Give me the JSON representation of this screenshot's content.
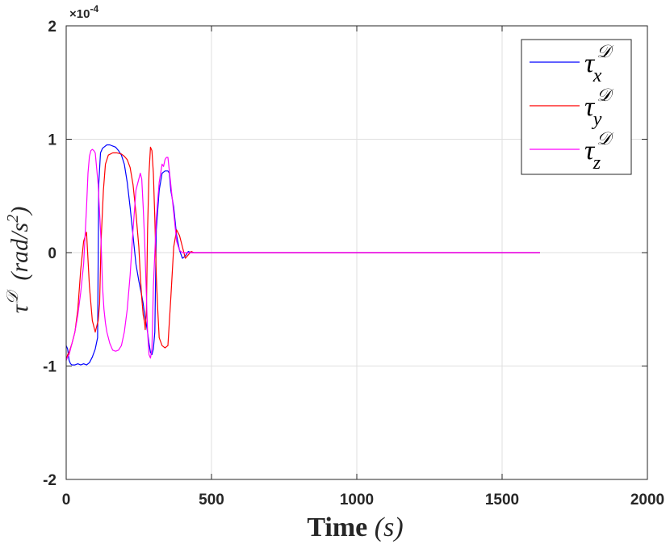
{
  "chart_data": {
    "type": "line",
    "xlabel": "Time",
    "xlabel_unit": "(s)",
    "ylabel": "τ",
    "ylabel_sup": "𝒟",
    "ylabel_unit": "(rad/s",
    "ylabel_unit_sup": "2",
    "ylabel_unit_close": ")",
    "y_exponent_prefix": "×10",
    "y_exponent": "-4",
    "xlim": [
      0,
      2000
    ],
    "ylim": [
      -2,
      2
    ],
    "xticks": [
      0,
      500,
      1000,
      1500,
      2000
    ],
    "xtick_labels": [
      "0",
      "500",
      "1000",
      "1500",
      "2000"
    ],
    "yticks": [
      -2,
      -1,
      0,
      1,
      2
    ],
    "ytick_labels": [
      "-2",
      "-1",
      "0",
      "1",
      "2"
    ],
    "grid": true,
    "legend_position": "top-right",
    "series": [
      {
        "name": "τ_x^𝒟",
        "legend_base": "τ",
        "legend_sub": "x",
        "legend_sup": "𝒟",
        "color": "#0000ff",
        "x": [
          0,
          5,
          10,
          15,
          20,
          30,
          40,
          50,
          60,
          70,
          80,
          90,
          100,
          108,
          112,
          118,
          125,
          130,
          140,
          150,
          160,
          170,
          180,
          190,
          200,
          210,
          220,
          230,
          240,
          250,
          260,
          265,
          270,
          275,
          280,
          285,
          290,
          295,
          300,
          305,
          310,
          320,
          330,
          340,
          350,
          355,
          360,
          370,
          380,
          390,
          400,
          410,
          420,
          430,
          440,
          450,
          470,
          500,
          700,
          1000,
          1300,
          1630
        ],
        "y": [
          -0.82,
          -0.85,
          -0.95,
          -0.98,
          -0.99,
          -0.99,
          -0.98,
          -0.99,
          -0.98,
          -0.99,
          -0.97,
          -0.92,
          -0.85,
          -0.75,
          0.6,
          0.88,
          0.92,
          0.93,
          0.95,
          0.95,
          0.94,
          0.93,
          0.9,
          0.86,
          0.78,
          0.62,
          0.4,
          0.15,
          -0.1,
          -0.25,
          -0.38,
          -0.45,
          -0.55,
          -0.62,
          -0.7,
          -0.8,
          -0.88,
          -0.9,
          -0.85,
          -0.7,
          0.2,
          0.55,
          0.7,
          0.72,
          0.72,
          0.7,
          0.55,
          0.4,
          0.15,
          0.02,
          -0.05,
          -0.03,
          0.01,
          0.0,
          0.0,
          0.0,
          0.0,
          0.0,
          0.0,
          0.0,
          0.0,
          0.0
        ]
      },
      {
        "name": "τ_y^𝒟",
        "legend_base": "τ",
        "legend_sub": "y",
        "legend_sup": "𝒟",
        "color": "#ff0000",
        "x": [
          0,
          5,
          10,
          20,
          30,
          40,
          50,
          60,
          70,
          80,
          90,
          100,
          110,
          115,
          120,
          128,
          135,
          145,
          160,
          175,
          190,
          200,
          210,
          220,
          230,
          240,
          250,
          255,
          260,
          265,
          270,
          272,
          276,
          280,
          285,
          290,
          295,
          300,
          305,
          310,
          315,
          320,
          330,
          340,
          350,
          360,
          370,
          380,
          390,
          400,
          410,
          420,
          430,
          440,
          460,
          500,
          800,
          1200,
          1630
        ],
        "y": [
          -0.95,
          -0.9,
          -0.88,
          -0.8,
          -0.7,
          -0.5,
          -0.15,
          0.1,
          0.18,
          -0.3,
          -0.6,
          -0.7,
          -0.6,
          -0.45,
          0.1,
          0.55,
          0.78,
          0.86,
          0.88,
          0.88,
          0.87,
          0.85,
          0.82,
          0.75,
          0.6,
          0.35,
          0.05,
          -0.2,
          -0.4,
          -0.55,
          -0.62,
          -0.68,
          -0.5,
          0.2,
          0.7,
          0.93,
          0.9,
          0.7,
          0.3,
          -0.2,
          -0.5,
          -0.75,
          -0.82,
          -0.84,
          -0.82,
          -0.4,
          0.05,
          0.2,
          0.15,
          0.05,
          -0.05,
          -0.02,
          0.01,
          0.0,
          0.0,
          0.0,
          0.0,
          0.0,
          0.0
        ]
      },
      {
        "name": "τ_z^𝒟",
        "legend_base": "τ",
        "legend_sub": "z",
        "legend_sup": "𝒟",
        "color": "#ff00ff",
        "x": [
          0,
          5,
          10,
          20,
          30,
          40,
          50,
          60,
          70,
          75,
          80,
          85,
          90,
          95,
          100,
          110,
          120,
          125,
          130,
          135,
          140,
          150,
          160,
          170,
          180,
          190,
          200,
          210,
          220,
          230,
          240,
          250,
          255,
          260,
          265,
          270,
          275,
          280,
          285,
          290,
          295,
          300,
          310,
          320,
          330,
          335,
          340,
          345,
          350,
          360,
          370,
          380,
          390,
          400,
          410,
          420,
          430,
          450,
          500,
          800,
          1200,
          1630
        ],
        "y": [
          -0.95,
          -0.92,
          -0.9,
          -0.8,
          -0.7,
          -0.55,
          -0.35,
          -0.1,
          0.4,
          0.7,
          0.85,
          0.9,
          0.91,
          0.9,
          0.88,
          0.6,
          0.1,
          -0.3,
          -0.5,
          -0.62,
          -0.7,
          -0.8,
          -0.86,
          -0.87,
          -0.86,
          -0.82,
          -0.7,
          -0.5,
          -0.2,
          0.2,
          0.55,
          0.65,
          0.7,
          0.65,
          0.4,
          0.1,
          -0.3,
          -0.7,
          -0.9,
          -0.93,
          -0.85,
          -0.3,
          0.3,
          0.62,
          0.78,
          0.76,
          0.82,
          0.84,
          0.84,
          0.6,
          0.35,
          0.1,
          0.02,
          0.0,
          0.0,
          0.0,
          0.0,
          0.0,
          0.0,
          0.0,
          0.0,
          0.0
        ]
      }
    ]
  }
}
